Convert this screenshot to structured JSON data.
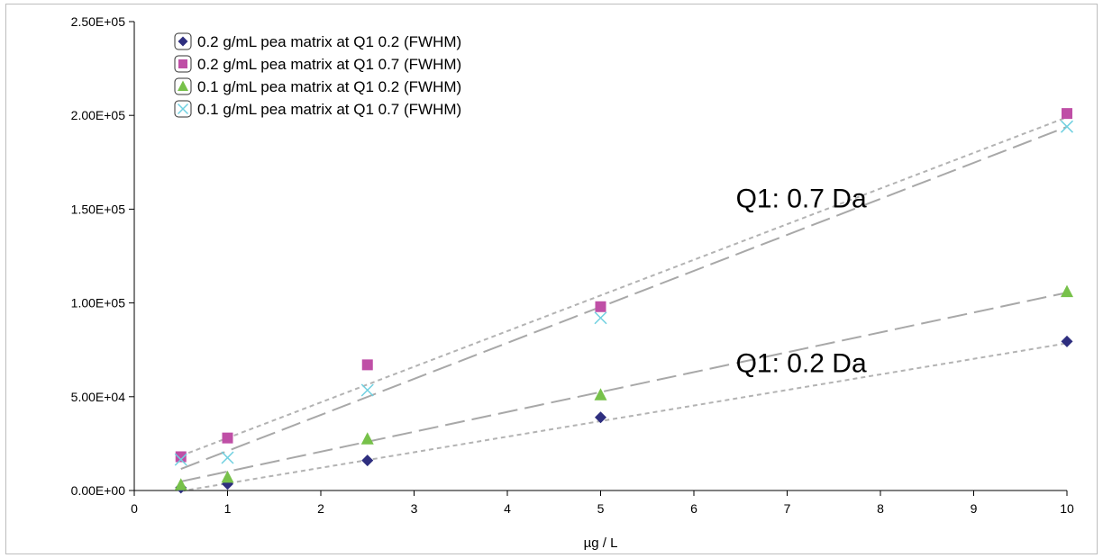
{
  "chart_data": {
    "type": "scatter",
    "title": "",
    "xlabel": "µg / L",
    "ylabel": "",
    "xlim": [
      0,
      10
    ],
    "ylim": [
      0,
      250000
    ],
    "x_ticks": [
      0,
      1,
      2,
      3,
      4,
      5,
      6,
      7,
      8,
      9,
      10
    ],
    "y_ticks": [
      0,
      50000,
      100000,
      150000,
      200000,
      250000
    ],
    "y_tick_labels": [
      "0.00E+00",
      "5.00E+04",
      "1.00E+05",
      "1.50E+05",
      "2.00E+05",
      "2.50E+05"
    ],
    "legend_position": "top-left",
    "grid": false,
    "series": [
      {
        "name": "0.2 g/mL pea matrix at Q1 0.2 (FWHM)",
        "marker": "diamond",
        "color": "#2e2e7f",
        "x": [
          0.5,
          1,
          2.5,
          5,
          10
        ],
        "y": [
          1500,
          3500,
          16000,
          39000,
          79500
        ],
        "trendline": {
          "slope": 8300,
          "intercept": -4500,
          "style": "short-dash",
          "color": "#b3b3b3"
        }
      },
      {
        "name": "0.2 g/mL pea matrix at Q1 0.7 (FWHM)",
        "marker": "square",
        "color": "#bf4fa6",
        "x": [
          0.5,
          1,
          2.5,
          5,
          10
        ],
        "y": [
          18000,
          28000,
          67000,
          98000,
          201000
        ],
        "trendline": {
          "slope": 19000,
          "intercept": 9000,
          "style": "short-dash",
          "color": "#b3b3b3"
        }
      },
      {
        "name": "0.1 g/mL pea matrix at Q1 0.2 (FWHM)",
        "marker": "triangle",
        "color": "#77c14a",
        "x": [
          0.5,
          1,
          2.5,
          5,
          10
        ],
        "y": [
          3000,
          7000,
          27500,
          51000,
          106000
        ],
        "trendline": {
          "slope": 10600,
          "intercept": -500,
          "style": "long-dash",
          "color": "#a8a8a8"
        }
      },
      {
        "name": "0.1 g/mL pea matrix at Q1 0.7 (FWHM)",
        "marker": "x",
        "color": "#6fd0e0",
        "x": [
          0.5,
          1,
          2.5,
          5,
          10
        ],
        "y": [
          16500,
          17500,
          53500,
          92000,
          194000
        ],
        "trendline": {
          "slope": 19200,
          "intercept": 1900,
          "style": "long-dash",
          "color": "#a8a8a8"
        }
      }
    ],
    "annotations": [
      {
        "text": "Q1: 0.7 Da",
        "x": 6.45,
        "y": 151000
      },
      {
        "text": "Q1: 0.2 Da",
        "x": 6.45,
        "y": 63000
      }
    ]
  }
}
